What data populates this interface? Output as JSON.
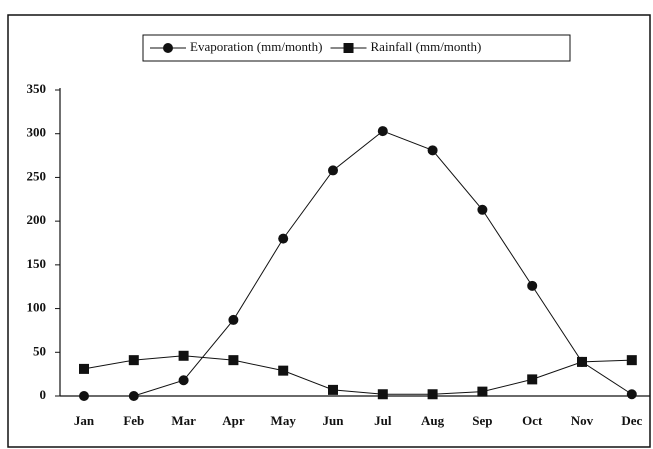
{
  "chart_data": {
    "type": "line",
    "categories": [
      "Jan",
      "Feb",
      "Mar",
      "Apr",
      "May",
      "Jun",
      "Jul",
      "Aug",
      "Sep",
      "Oct",
      "Nov",
      "Dec"
    ],
    "series": [
      {
        "name": "Evaporation (mm/month)",
        "color": "#111111",
        "marker": "circle",
        "values": [
          0,
          0,
          18,
          87,
          180,
          258,
          303,
          281,
          213,
          126,
          39,
          2
        ]
      },
      {
        "name": "Rainfall (mm/month)",
        "color": "#111111",
        "marker": "square",
        "values": [
          31,
          41,
          46,
          41,
          29,
          7,
          2,
          2,
          5,
          19,
          39,
          41
        ]
      }
    ],
    "ylim": [
      0,
      350
    ],
    "yticks": [
      0,
      50,
      100,
      150,
      200,
      250,
      300,
      350
    ]
  }
}
